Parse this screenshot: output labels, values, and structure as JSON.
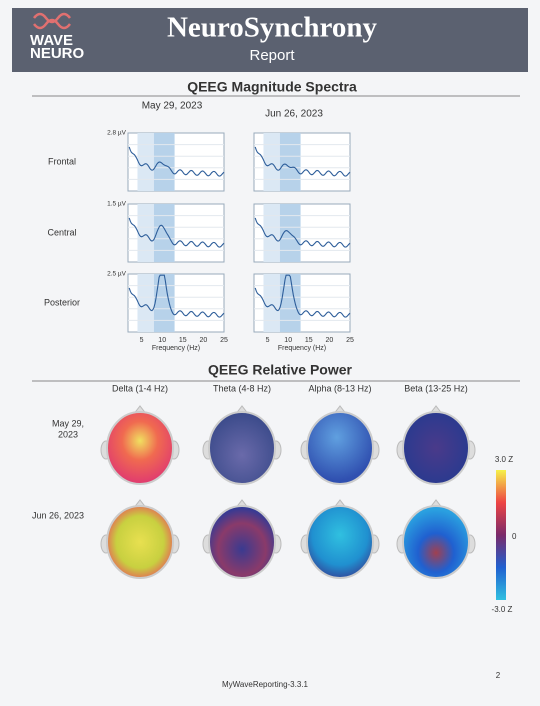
{
  "header": {
    "logo": [
      "WAVE",
      "NEURO"
    ],
    "title": "NeuroSynchrony",
    "subtitle": "Report"
  },
  "spectra": {
    "title": "QEEG Magnitude Spectra",
    "dates": [
      "May 29, 2023",
      "Jun 26, 2023"
    ],
    "rows": [
      {
        "label": "Frontal",
        "y_max": "2.8 µV"
      },
      {
        "label": "Central",
        "y_max": "1.5 µV"
      },
      {
        "label": "Posterior",
        "y_max": "2.5 µV"
      }
    ],
    "x_ticks": [
      5,
      10,
      15,
      20,
      25
    ],
    "x_label": "Frequency (Hz)"
  },
  "relative_power": {
    "title": "QEEG Relative Power",
    "bands": [
      "Delta (1-4 Hz)",
      "Theta (4-8 Hz)",
      "Alpha (8-13 Hz)",
      "Beta (13-25 Hz)"
    ],
    "rows": [
      [
        "May 29,",
        "2023"
      ],
      [
        "Jun 26, 2023"
      ]
    ],
    "scale_labels": [
      "3.0 Z",
      "0",
      "-3.0 Z"
    ]
  },
  "footer": {
    "version": "MyWaveReporting-3.3.1",
    "page": "2"
  }
}
